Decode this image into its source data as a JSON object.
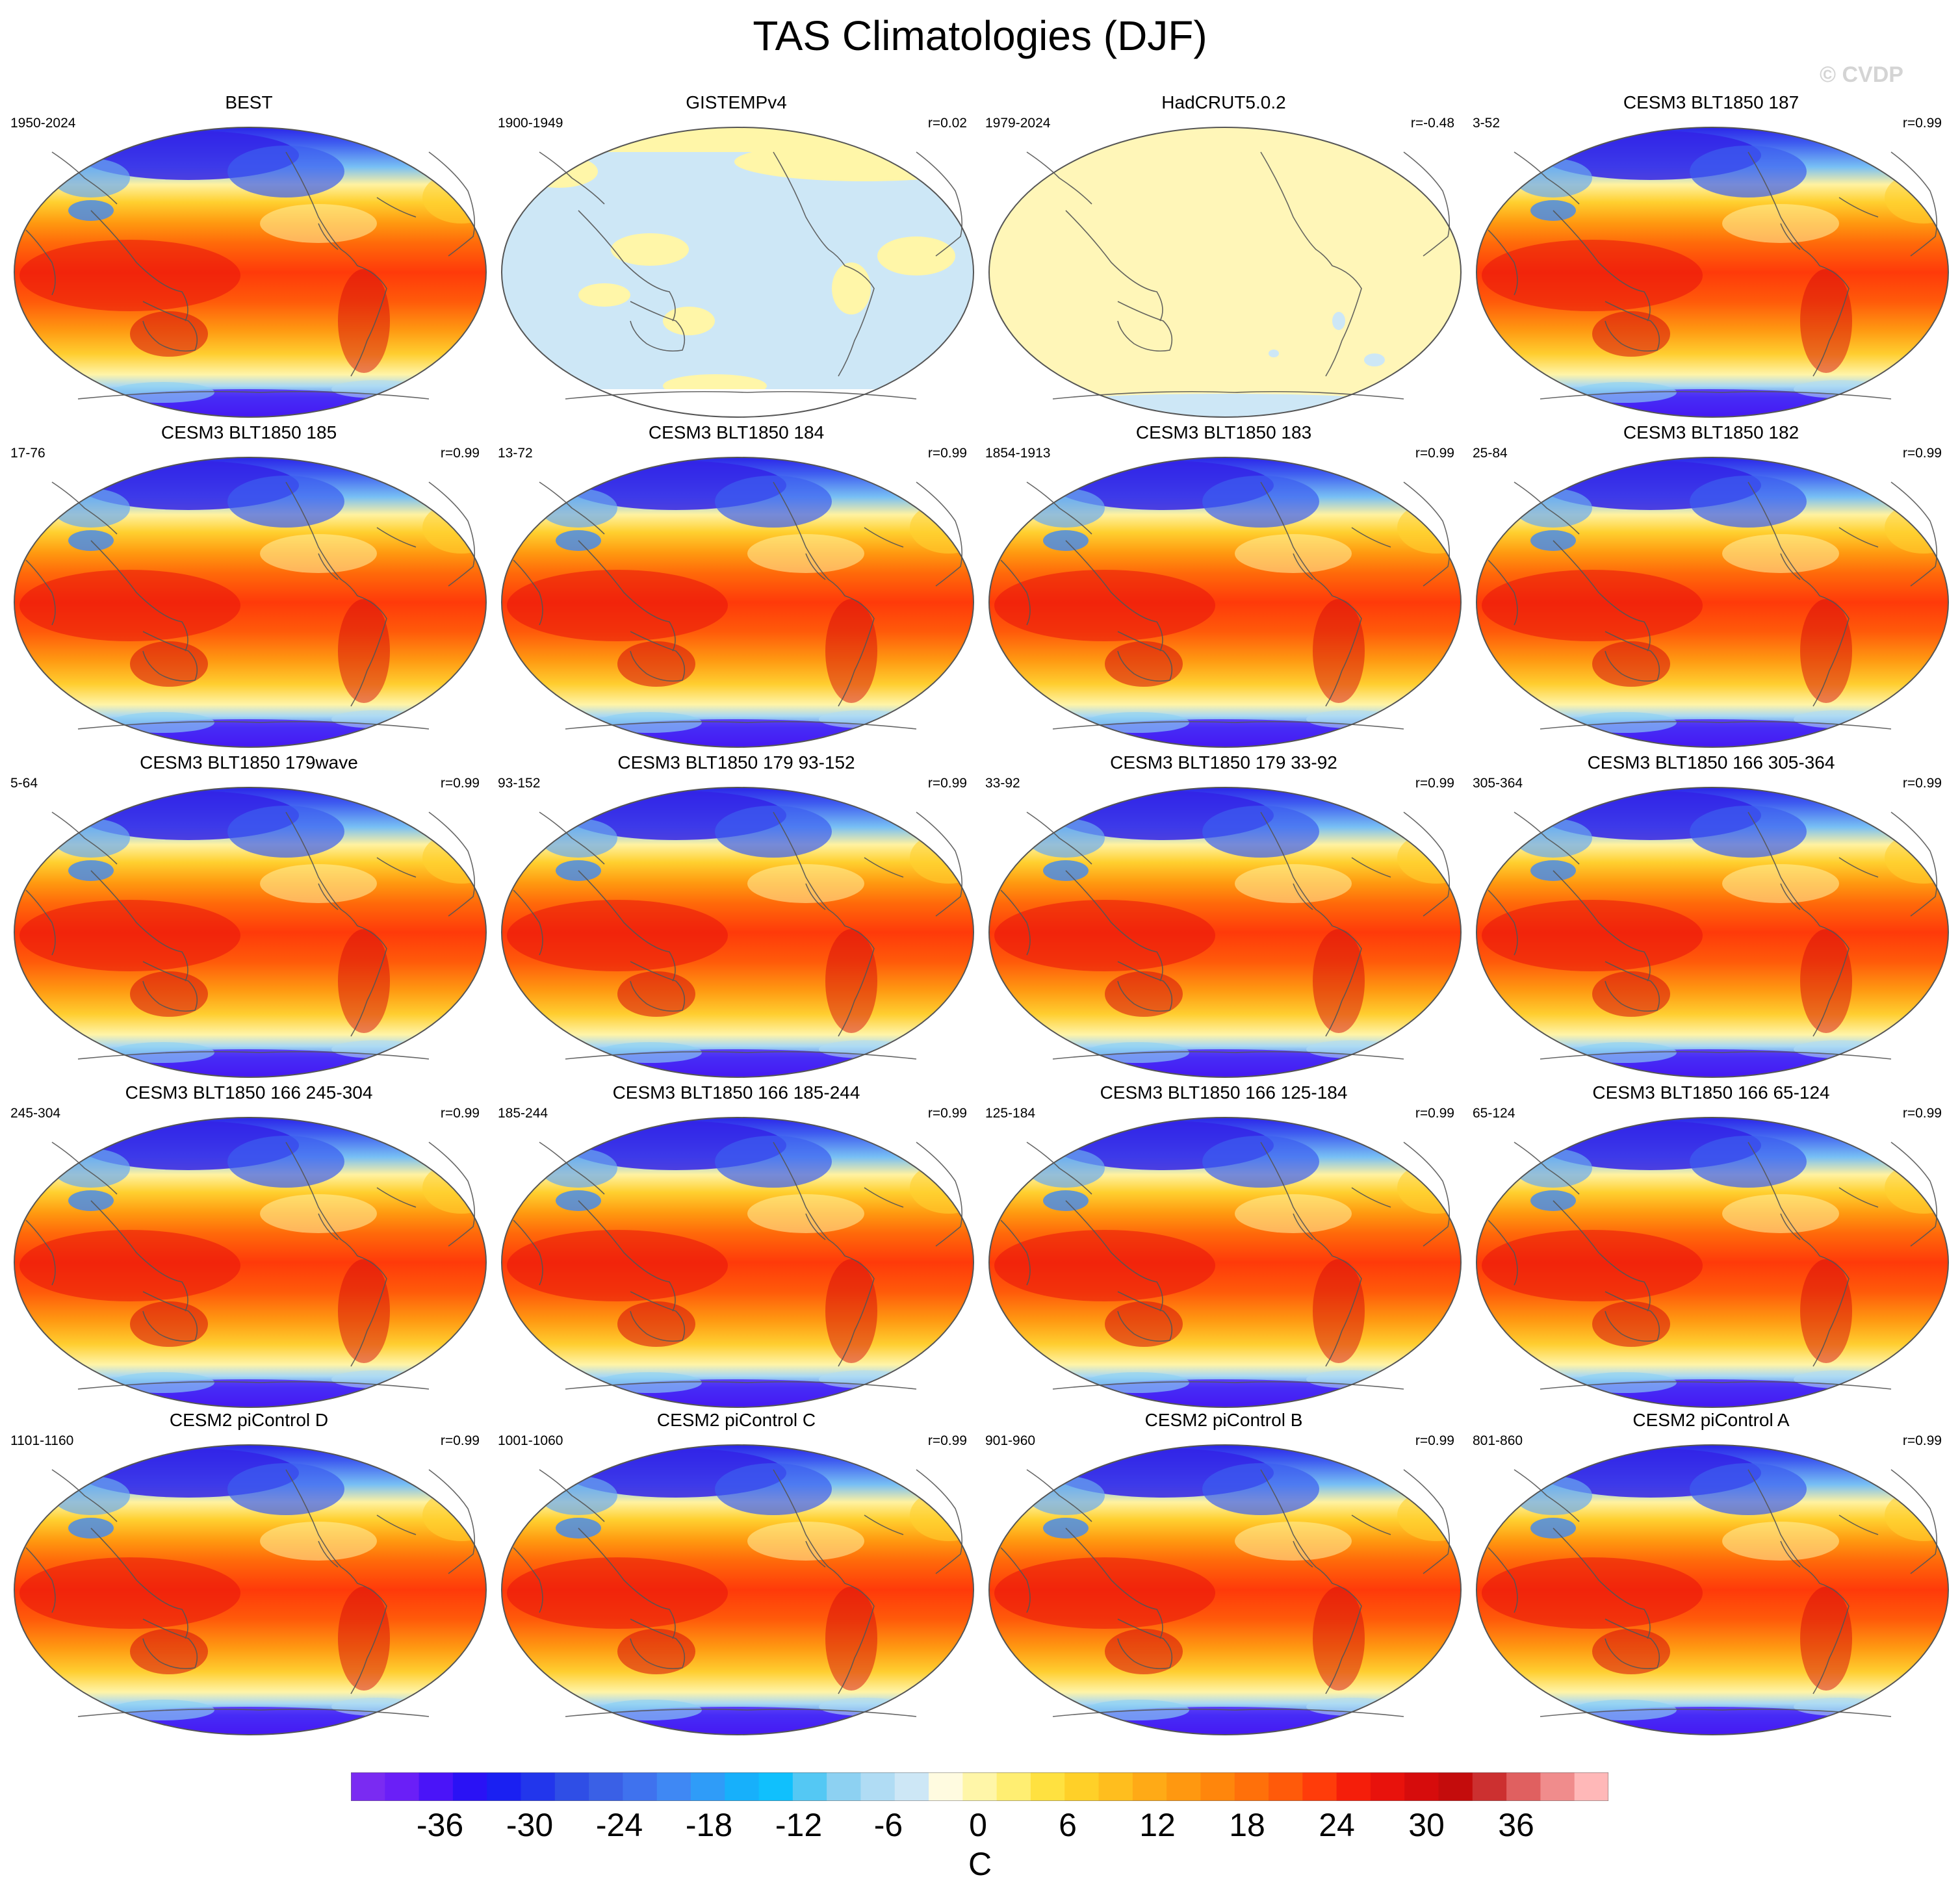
{
  "figure": {
    "title": "TAS Climatologies (DJF)",
    "watermark": "© CVDP"
  },
  "panels": [
    {
      "title": "BEST",
      "years": "1950-2024",
      "r": "",
      "style": "full"
    },
    {
      "title": "GISTEMPv4",
      "years": "1900-1949",
      "r": "r=0.02",
      "style": "gistemp"
    },
    {
      "title": "HadCRUT5.0.2",
      "years": "1979-2024",
      "r": "r=-0.48",
      "style": "hadcrut"
    },
    {
      "title": "CESM3 BLT1850 187",
      "years": "3-52",
      "r": "r=0.99",
      "style": "full"
    },
    {
      "title": "CESM3 BLT1850 185",
      "years": "17-76",
      "r": "r=0.99",
      "style": "full"
    },
    {
      "title": "CESM3 BLT1850 184",
      "years": "13-72",
      "r": "r=0.99",
      "style": "full"
    },
    {
      "title": "CESM3 BLT1850 183",
      "years": "1854-1913",
      "r": "r=0.99",
      "style": "full"
    },
    {
      "title": "CESM3 BLT1850 182",
      "years": "25-84",
      "r": "r=0.99",
      "style": "full"
    },
    {
      "title": "CESM3 BLT1850 179wave",
      "years": "5-64",
      "r": "r=0.99",
      "style": "full"
    },
    {
      "title": "CESM3 BLT1850 179 93-152",
      "years": "93-152",
      "r": "r=0.99",
      "style": "full"
    },
    {
      "title": "CESM3 BLT1850 179 33-92",
      "years": "33-92",
      "r": "r=0.99",
      "style": "full"
    },
    {
      "title": "CESM3 BLT1850 166 305-364",
      "years": "305-364",
      "r": "r=0.99",
      "style": "full"
    },
    {
      "title": "CESM3 BLT1850 166 245-304",
      "years": "245-304",
      "r": "r=0.99",
      "style": "full"
    },
    {
      "title": "CESM3 BLT1850 166 185-244",
      "years": "185-244",
      "r": "r=0.99",
      "style": "full"
    },
    {
      "title": "CESM3 BLT1850 166 125-184",
      "years": "125-184",
      "r": "r=0.99",
      "style": "full"
    },
    {
      "title": "CESM3 BLT1850 166 65-124",
      "years": "65-124",
      "r": "r=0.99",
      "style": "full"
    },
    {
      "title": "CESM2 piControl D",
      "years": "1101-1160",
      "r": "r=0.99",
      "style": "full"
    },
    {
      "title": "CESM2 piControl C",
      "years": "1001-1060",
      "r": "r=0.99",
      "style": "full"
    },
    {
      "title": "CESM2 piControl B",
      "years": "901-960",
      "r": "r=0.99",
      "style": "full"
    },
    {
      "title": "CESM2 piControl A",
      "years": "801-860",
      "r": "r=0.99",
      "style": "full"
    }
  ],
  "colorbar": {
    "unit": "C",
    "tick_labels": [
      "-36",
      "-30",
      "-24",
      "-18",
      "-12",
      "-6",
      "0",
      "6",
      "12",
      "18",
      "24",
      "30",
      "36"
    ],
    "colors": [
      "#7a2bf2",
      "#6a1ff7",
      "#4a14f8",
      "#2a12f5",
      "#1a20f2",
      "#2236ec",
      "#2f4ee6",
      "#3a60e6",
      "#3f72ee",
      "#3f88f4",
      "#2f9cf8",
      "#17b0fb",
      "#10c0fd",
      "#54c8f4",
      "#8dd1f2",
      "#b0dcf4",
      "#cde7f6",
      "#fffbe0",
      "#fff6a8",
      "#ffee72",
      "#ffe140",
      "#ffd028",
      "#ffbe1e",
      "#ffaa16",
      "#ff9810",
      "#ff860c",
      "#ff700a",
      "#ff5a0a",
      "#ff3c0a",
      "#f51e0a",
      "#e8120c",
      "#d60c0c",
      "#c40c0c",
      "#cc3030",
      "#e06060",
      "#f08c8c",
      "#ffb8b8"
    ]
  }
}
